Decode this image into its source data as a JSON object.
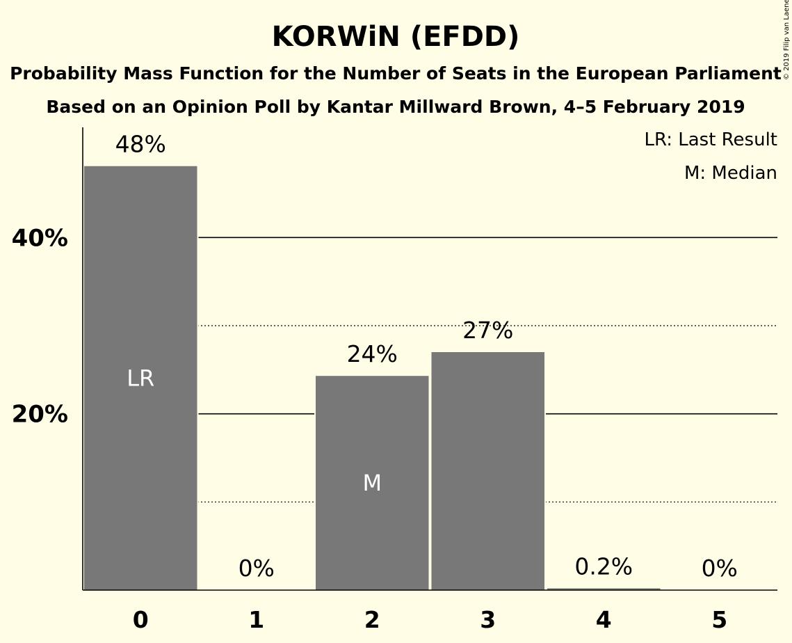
{
  "chart_data": {
    "type": "bar",
    "title": "KORWiN (EFDD)",
    "subtitle": "Probability Mass Function for the Number of Seats in the European Parliament",
    "subtitle2": "Based on an Opinion Poll by Kantar Millward Brown, 4–5 February 2019",
    "copyright": "© 2019 Filip van Laenen",
    "legend": [
      "LR: Last Result",
      "M: Median"
    ],
    "legend_position": "top-right",
    "categories": [
      "0",
      "1",
      "2",
      "3",
      "4",
      "5"
    ],
    "values": [
      48.1,
      0,
      24.3,
      27.0,
      0.2,
      0
    ],
    "value_labels": [
      "48%",
      "0%",
      "24%",
      "27%",
      "0.2%",
      "0%"
    ],
    "bar_markers": [
      "LR",
      "",
      "M",
      "",
      "",
      ""
    ],
    "ylim": [
      0,
      52.5
    ],
    "y_ticks": [
      20,
      40
    ],
    "y_tick_labels": [
      "20%",
      "40%"
    ],
    "y_minor_gridlines": [
      10,
      30
    ],
    "grid": true,
    "bar_color": "#787878",
    "background": "#FFFDE6"
  }
}
